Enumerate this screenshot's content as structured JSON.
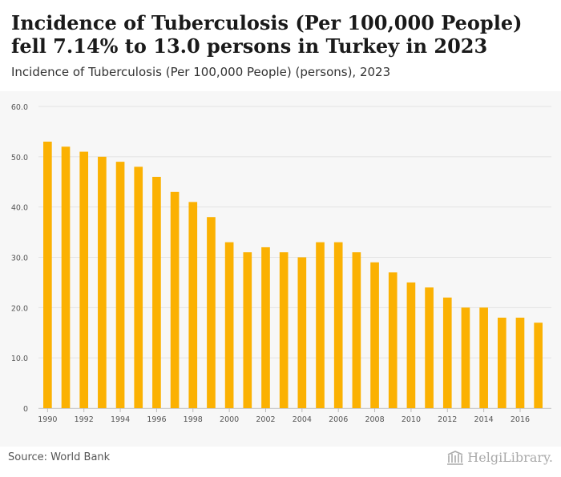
{
  "header": {
    "title": "Incidence of Tuberculosis (Per 100,000 People) fell 7.14% to 13.0 persons in Turkey in 2023",
    "subtitle": "Incidence of Tuberculosis (Per 100,000 People) (persons), 2023"
  },
  "footer": {
    "source": "Source: World Bank",
    "brand": "HelgiLibrary."
  },
  "chart_data": {
    "type": "bar",
    "categories": [
      "1990",
      "1991",
      "1992",
      "1993",
      "1994",
      "1995",
      "1996",
      "1997",
      "1998",
      "1999",
      "2000",
      "2001",
      "2002",
      "2003",
      "2004",
      "2005",
      "2006",
      "2007",
      "2008",
      "2009",
      "2010",
      "2011",
      "2012",
      "2013",
      "2014",
      "2015",
      "2016",
      "2017"
    ],
    "values": [
      53,
      52,
      51,
      50,
      49,
      48,
      46,
      43,
      41,
      38,
      33,
      31,
      32,
      31,
      30,
      33,
      33,
      31,
      29,
      27,
      25,
      24,
      22,
      20,
      20,
      18,
      18,
      17
    ],
    "x_tick_labels": [
      "1990",
      "1992",
      "1994",
      "1996",
      "1998",
      "2000",
      "2002",
      "2004",
      "2006",
      "2008",
      "2010",
      "2012",
      "2014",
      "2016"
    ],
    "y_tick_labels": [
      "0",
      "10.0",
      "20.0",
      "30.0",
      "40.0",
      "50.0",
      "60.0"
    ],
    "ylim": [
      0,
      60
    ],
    "grid": true,
    "bar_color": "#fbb102",
    "grid_color": "#e3e3e3"
  }
}
